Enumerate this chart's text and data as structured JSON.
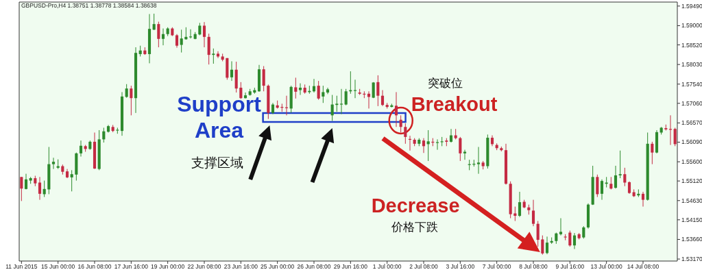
{
  "chart_data": {
    "type": "candlestick",
    "title": "GBPUSD-Pro,H4  1.38751 1.38778 1.38584 1.38638",
    "categories": [
      "11 Jun 2015",
      null,
      null,
      null,
      null,
      null,
      null,
      null,
      "15 Jun 00:00",
      null,
      null,
      null,
      null,
      null,
      null,
      null,
      "16 Jun 08:00",
      null,
      null,
      null,
      null,
      null,
      null,
      null,
      "17 Jun 16:00",
      null,
      null,
      null,
      null,
      null,
      null,
      null,
      "19 Jun 00:00",
      null,
      null,
      null,
      null,
      null,
      null,
      null,
      "22 Jun 08:00",
      null,
      null,
      null,
      null,
      null,
      null,
      null,
      "23 Jun 16:00",
      null,
      null,
      null,
      null,
      null,
      null,
      null,
      "25 Jun 00:00",
      null,
      null,
      null,
      null,
      null,
      null,
      null,
      "26 Jun 08:00",
      null,
      null,
      null,
      null,
      null,
      null,
      null,
      "29 Jun 16:00",
      null,
      null,
      null,
      null,
      null,
      null,
      null,
      "1 Jul 00:00",
      null,
      null,
      null,
      null,
      null,
      null,
      null,
      "2 Jul 08:00",
      null,
      null,
      null,
      null,
      null,
      null,
      null,
      "3 Jul 16:00",
      null,
      null,
      null,
      null,
      null,
      null,
      null,
      "7 Jul 00:00",
      null,
      null,
      null,
      null,
      null,
      null,
      null,
      "8 Jul 08:00",
      null,
      null,
      null,
      null,
      null,
      null,
      null,
      "9 Jul 16:00",
      null,
      null,
      null,
      null,
      null,
      null,
      null,
      "13 Jul 00:00",
      null,
      null,
      null,
      null,
      null,
      null,
      null,
      "14 Jul 08:00",
      null,
      null,
      null,
      null,
      null,
      null,
      null
    ],
    "ohlc": [
      [
        1.5522,
        1.5522,
        1.5462,
        1.5493
      ],
      [
        1.5492,
        1.553,
        1.5491,
        1.5516
      ],
      [
        1.5513,
        1.5522,
        1.5505,
        1.5519
      ],
      [
        1.5519,
        1.5525,
        1.5499,
        1.5506
      ],
      [
        1.5508,
        1.5522,
        1.5465,
        1.548
      ],
      [
        1.5479,
        1.5513,
        1.5472,
        1.5492
      ],
      [
        1.5491,
        1.5597,
        1.5479,
        1.5554
      ],
      [
        1.5554,
        1.557,
        1.5542,
        1.556
      ],
      [
        1.5545,
        1.5566,
        1.5542,
        1.5549
      ],
      [
        1.5549,
        1.5553,
        1.5528,
        1.5535
      ],
      [
        1.5536,
        1.5542,
        1.5519,
        1.5521
      ],
      [
        1.5521,
        1.5539,
        1.5486,
        1.5529
      ],
      [
        1.5528,
        1.5583,
        1.5513,
        1.5581
      ],
      [
        1.5581,
        1.5613,
        1.5573,
        1.56
      ],
      [
        1.5599,
        1.5602,
        1.5585,
        1.5592
      ],
      [
        1.5592,
        1.5613,
        1.559,
        1.561
      ],
      [
        1.561,
        1.5633,
        1.5542,
        1.5543
      ],
      [
        1.5542,
        1.5639,
        1.5539,
        1.5616
      ],
      [
        1.5616,
        1.5645,
        1.5608,
        1.5636
      ],
      [
        1.5635,
        1.5652,
        1.5633,
        1.5649
      ],
      [
        1.5647,
        1.5652,
        1.5634,
        1.5637
      ],
      [
        1.5638,
        1.5645,
        1.563,
        1.564
      ],
      [
        1.5637,
        1.5734,
        1.5625,
        1.5723
      ],
      [
        1.5722,
        1.5754,
        1.572,
        1.5743
      ],
      [
        1.5743,
        1.575,
        1.5676,
        1.5719
      ],
      [
        1.5719,
        1.5846,
        1.5682,
        1.5832
      ],
      [
        1.5829,
        1.585,
        1.5823,
        1.5838
      ],
      [
        1.5838,
        1.5846,
        1.5827,
        1.5829
      ],
      [
        1.5829,
        1.5929,
        1.5806,
        1.5892
      ],
      [
        1.589,
        1.593,
        1.5889,
        1.5904
      ],
      [
        1.5904,
        1.591,
        1.5846,
        1.5867
      ],
      [
        1.5867,
        1.5893,
        1.5851,
        1.5879
      ],
      [
        1.5879,
        1.5896,
        1.5874,
        1.5893
      ],
      [
        1.5893,
        1.5896,
        1.5874,
        1.5876
      ],
      [
        1.5876,
        1.5879,
        1.5845,
        1.585
      ],
      [
        1.5852,
        1.589,
        1.5833,
        1.5868
      ],
      [
        1.5866,
        1.5896,
        1.5865,
        1.5872
      ],
      [
        1.5871,
        1.5891,
        1.5868,
        1.5873
      ],
      [
        1.5867,
        1.5884,
        1.5866,
        1.5879
      ],
      [
        1.5878,
        1.5907,
        1.5876,
        1.59
      ],
      [
        1.59,
        1.5909,
        1.5846,
        1.5872
      ],
      [
        1.5872,
        1.588,
        1.5803,
        1.5827
      ],
      [
        1.5827,
        1.5843,
        1.5805,
        1.583
      ],
      [
        1.583,
        1.5836,
        1.5819,
        1.5823
      ],
      [
        1.5823,
        1.583,
        1.5811,
        1.5815
      ],
      [
        1.5819,
        1.5819,
        1.5765,
        1.577
      ],
      [
        1.5771,
        1.5811,
        1.5762,
        1.579
      ],
      [
        1.579,
        1.581,
        1.5733,
        1.5743
      ],
      [
        1.5745,
        1.5759,
        1.5717,
        1.5719
      ],
      [
        1.5719,
        1.5733,
        1.5718,
        1.5726
      ],
      [
        1.5727,
        1.5742,
        1.5725,
        1.5736
      ],
      [
        1.5733,
        1.5745,
        1.573,
        1.5739
      ],
      [
        1.5736,
        1.5802,
        1.5735,
        1.5791
      ],
      [
        1.5791,
        1.5799,
        1.5736,
        1.575
      ],
      [
        1.575,
        1.5753,
        1.5667,
        1.5682
      ],
      [
        1.5682,
        1.5707,
        1.5679,
        1.5703
      ],
      [
        1.5701,
        1.5713,
        1.5693,
        1.5695
      ],
      [
        1.5697,
        1.5705,
        1.5685,
        1.5695
      ],
      [
        1.5696,
        1.5725,
        1.5676,
        1.5694
      ],
      [
        1.5693,
        1.575,
        1.5682,
        1.5747
      ],
      [
        1.5746,
        1.577,
        1.5718,
        1.5735
      ],
      [
        1.5739,
        1.5756,
        1.5727,
        1.5745
      ],
      [
        1.5745,
        1.5753,
        1.573,
        1.5733
      ],
      [
        1.5734,
        1.575,
        1.573,
        1.5737
      ],
      [
        1.5736,
        1.5767,
        1.5733,
        1.5749
      ],
      [
        1.575,
        1.5762,
        1.5715,
        1.5718
      ],
      [
        1.5723,
        1.575,
        1.5707,
        1.5734
      ],
      [
        1.5733,
        1.5745,
        1.5729,
        1.5741
      ],
      [
        1.5676,
        1.5727,
        1.5662,
        1.5703
      ],
      [
        1.5702,
        1.5725,
        1.5685,
        1.5705
      ],
      [
        1.5703,
        1.5742,
        1.5679,
        1.5705
      ],
      [
        1.5703,
        1.5742,
        1.5701,
        1.5736
      ],
      [
        1.5736,
        1.5786,
        1.573,
        1.5739
      ],
      [
        1.5737,
        1.5765,
        1.5719,
        1.5739
      ],
      [
        1.5733,
        1.5742,
        1.5727,
        1.573
      ],
      [
        1.573,
        1.5736,
        1.5719,
        1.5729
      ],
      [
        1.573,
        1.5736,
        1.5693,
        1.5722
      ],
      [
        1.572,
        1.5759,
        1.5719,
        1.5758
      ],
      [
        1.5759,
        1.5776,
        1.5699,
        1.5725
      ],
      [
        1.5725,
        1.5739,
        1.5699,
        1.5702
      ],
      [
        1.5702,
        1.5707,
        1.5693,
        1.5697
      ],
      [
        1.5697,
        1.5705,
        1.5696,
        1.5701
      ],
      [
        1.57,
        1.5734,
        1.5647,
        1.5676
      ],
      [
        1.5665,
        1.5676,
        1.5633,
        1.5647
      ],
      [
        1.5647,
        1.5656,
        1.5605,
        1.5622
      ],
      [
        1.5617,
        1.5625,
        1.5588,
        1.5615
      ],
      [
        1.5615,
        1.5619,
        1.5599,
        1.5605
      ],
      [
        1.5605,
        1.5619,
        1.5599,
        1.5615
      ],
      [
        1.5613,
        1.5619,
        1.5582,
        1.5599
      ],
      [
        1.5604,
        1.5639,
        1.5562,
        1.5611
      ],
      [
        1.561,
        1.5619,
        1.5599,
        1.5609
      ],
      [
        1.5608,
        1.5616,
        1.559,
        1.5609
      ],
      [
        1.5609,
        1.5622,
        1.5599,
        1.5611
      ],
      [
        1.5613,
        1.5619,
        1.5599,
        1.561
      ],
      [
        1.561,
        1.5642,
        1.5608,
        1.5626
      ],
      [
        1.5626,
        1.5642,
        1.5616,
        1.5619
      ],
      [
        1.5619,
        1.5622,
        1.5562,
        1.5581
      ],
      [
        1.5581,
        1.559,
        1.5565,
        1.5585
      ],
      [
        1.5552,
        1.5565,
        1.5539,
        1.5554
      ],
      [
        1.5553,
        1.5565,
        1.5548,
        1.5555
      ],
      [
        1.5554,
        1.5597,
        1.553,
        1.5558
      ],
      [
        1.5558,
        1.5562,
        1.5541,
        1.5549
      ],
      [
        1.5549,
        1.5628,
        1.5543,
        1.562
      ],
      [
        1.562,
        1.5626,
        1.5599,
        1.5604
      ],
      [
        1.5602,
        1.5606,
        1.5589,
        1.5594
      ],
      [
        1.5594,
        1.5598,
        1.5586,
        1.5589
      ],
      [
        1.5589,
        1.5605,
        1.5503,
        1.5505
      ],
      [
        1.5505,
        1.5511,
        1.5419,
        1.5429
      ],
      [
        1.5431,
        1.5448,
        1.5412,
        1.5425
      ],
      [
        1.5425,
        1.5485,
        1.5422,
        1.5459
      ],
      [
        1.546,
        1.5465,
        1.5444,
        1.5446
      ],
      [
        1.5446,
        1.5453,
        1.5428,
        1.5439
      ],
      [
        1.5438,
        1.5465,
        1.5399,
        1.5405
      ],
      [
        1.5405,
        1.5412,
        1.5348,
        1.5365
      ],
      [
        1.5366,
        1.5376,
        1.5328,
        1.5331
      ],
      [
        1.5332,
        1.5373,
        1.5329,
        1.5358
      ],
      [
        1.5358,
        1.5371,
        1.5355,
        1.5362
      ],
      [
        1.5362,
        1.5383,
        1.5355,
        1.5381
      ],
      [
        1.5379,
        1.5419,
        1.5376,
        1.5385
      ],
      [
        1.5373,
        1.5379,
        1.5364,
        1.5371
      ],
      [
        1.5383,
        1.5388,
        1.5348,
        1.5351
      ],
      [
        1.5351,
        1.5382,
        1.5342,
        1.5376
      ],
      [
        1.5379,
        1.5382,
        1.5366,
        1.5369
      ],
      [
        1.5371,
        1.5399,
        1.5368,
        1.5396
      ],
      [
        1.5396,
        1.5456,
        1.5393,
        1.5453
      ],
      [
        1.5453,
        1.555,
        1.5452,
        1.5522
      ],
      [
        1.5522,
        1.5528,
        1.5472,
        1.5479
      ],
      [
        1.548,
        1.5516,
        1.5465,
        1.5512
      ],
      [
        1.5505,
        1.5522,
        1.5496,
        1.5508
      ],
      [
        1.5505,
        1.5522,
        1.5491,
        1.5493
      ],
      [
        1.5495,
        1.555,
        1.5493,
        1.5526
      ],
      [
        1.5526,
        1.5588,
        1.5519,
        1.5529
      ],
      [
        1.5529,
        1.5545,
        1.5499,
        1.5508
      ],
      [
        1.5509,
        1.5511,
        1.548,
        1.5482
      ],
      [
        1.5484,
        1.5491,
        1.5472,
        1.5474
      ],
      [
        1.5476,
        1.5491,
        1.5472,
        1.548
      ],
      [
        1.548,
        1.5485,
        1.5448,
        1.5465
      ],
      [
        1.5465,
        1.5633,
        1.5463,
        1.5605
      ],
      [
        1.5605,
        1.561,
        1.5554,
        1.5583
      ],
      [
        1.5583,
        1.5639,
        1.5581,
        1.5634
      ],
      [
        1.5633,
        1.5647,
        1.5628,
        1.5645
      ],
      [
        1.5644,
        1.5653,
        1.5638,
        1.5641
      ],
      [
        1.5642,
        1.5676,
        1.5602,
        1.564
      ],
      [
        1.5642,
        1.5645,
        1.5599,
        1.5604
      ]
    ],
    "colors": [
      "#c42a43",
      "#2d8a2d",
      "#2d8a2d",
      "#c42a43",
      "#c42a43",
      "#2d8a2d",
      "#2d8a2d",
      "#2d8a2d",
      "#2d8a2d",
      "#c42a43",
      "#c42a43",
      "#2d8a2d",
      "#2d8a2d",
      "#2d8a2d",
      "#c42a43",
      "#2d8a2d",
      "#c42a43",
      "#2d8a2d",
      "#2d8a2d",
      "#2d8a2d",
      "#c42a43",
      "#2d8a2d",
      "#2d8a2d",
      "#2d8a2d",
      "#c42a43",
      "#2d8a2d",
      "#2d8a2d",
      "#c42a43",
      "#2d8a2d",
      "#2d8a2d",
      "#c42a43",
      "#2d8a2d",
      "#2d8a2d",
      "#c42a43",
      "#c42a43",
      "#2d8a2d",
      "#2d8a2d",
      "#2d8a2d",
      "#2d8a2d",
      "#2d8a2d",
      "#c42a43",
      "#c42a43",
      "#2d8a2d",
      "#c42a43",
      "#c42a43",
      "#c42a43",
      "#2d8a2d",
      "#c42a43",
      "#c42a43",
      "#2d8a2d",
      "#2d8a2d",
      "#2d8a2d",
      "#2d8a2d",
      "#c42a43",
      "#c42a43",
      "#2d8a2d",
      "#c42a43",
      "#c42a43",
      "#c42a43",
      "#2d8a2d",
      "#c42a43",
      "#2d8a2d",
      "#c42a43",
      "#2d8a2d",
      "#2d8a2d",
      "#c42a43",
      "#2d8a2d",
      "#2d8a2d",
      "#2d8a2d",
      "#2d8a2d",
      "#2d8a2d",
      "#2d8a2d",
      "#2d8a2d",
      "#2d8a2d",
      "#c42a43",
      "#c42a43",
      "#c42a43",
      "#2d8a2d",
      "#c42a43",
      "#c42a43",
      "#c42a43",
      "#2d8a2d",
      "#c42a43",
      "#c42a43",
      "#c42a43",
      "#c42a43",
      "#c42a43",
      "#2d8a2d",
      "#c42a43",
      "#2d8a2d",
      "#c42a43",
      "#2d8a2d",
      "#2d8a2d",
      "#c42a43",
      "#2d8a2d",
      "#c42a43",
      "#c42a43",
      "#2d8a2d",
      "#2d8a2d",
      "#2d8a2d",
      "#2d8a2d",
      "#c42a43",
      "#2d8a2d",
      "#c42a43",
      "#c42a43",
      "#c42a43",
      "#c42a43",
      "#c42a43",
      "#c42a43",
      "#2d8a2d",
      "#c42a43",
      "#c42a43",
      "#c42a43",
      "#c42a43",
      "#c42a43",
      "#2d8a2d",
      "#2d8a2d",
      "#2d8a2d",
      "#2d8a2d",
      "#c42a43",
      "#c42a43",
      "#2d8a2d",
      "#c42a43",
      "#2d8a2d",
      "#2d8a2d",
      "#2d8a2d",
      "#c42a43",
      "#2d8a2d",
      "#2d8a2d",
      "#c42a43",
      "#2d8a2d",
      "#2d8a2d",
      "#c42a43",
      "#c42a43",
      "#c42a43",
      "#2d8a2d",
      "#c42a43",
      "#2d8a2d",
      "#c42a43",
      "#2d8a2d",
      "#2d8a2d",
      "#c42a43",
      "#c42a43",
      "#c42a43"
    ],
    "ylim": [
      1.5312,
      1.5959
    ],
    "yticks": [
      {
        "value": 1.5949,
        "label": "1.59490"
      },
      {
        "value": 1.59,
        "label": "1.59000"
      },
      {
        "value": 1.5852,
        "label": "1.58520"
      },
      {
        "value": 1.5803,
        "label": "1.58030"
      },
      {
        "value": 1.5754,
        "label": "1.57540"
      },
      {
        "value": 1.5706,
        "label": "1.57060"
      },
      {
        "value": 1.5657,
        "label": "1.56570"
      },
      {
        "value": 1.5609,
        "label": "1.56090"
      },
      {
        "value": 1.556,
        "label": "1.55600"
      },
      {
        "value": 1.5512,
        "label": "1.55120"
      },
      {
        "value": 1.5463,
        "label": "1.54630"
      },
      {
        "value": 1.5415,
        "label": "1.54150"
      },
      {
        "value": 1.5366,
        "label": "1.53660"
      },
      {
        "value": 1.5317,
        "label": "1.53170"
      }
    ],
    "annotations": [
      "Support Area",
      "支撑区域",
      "突破位",
      "Breakout",
      "Decrease",
      "价格下跌"
    ]
  }
}
